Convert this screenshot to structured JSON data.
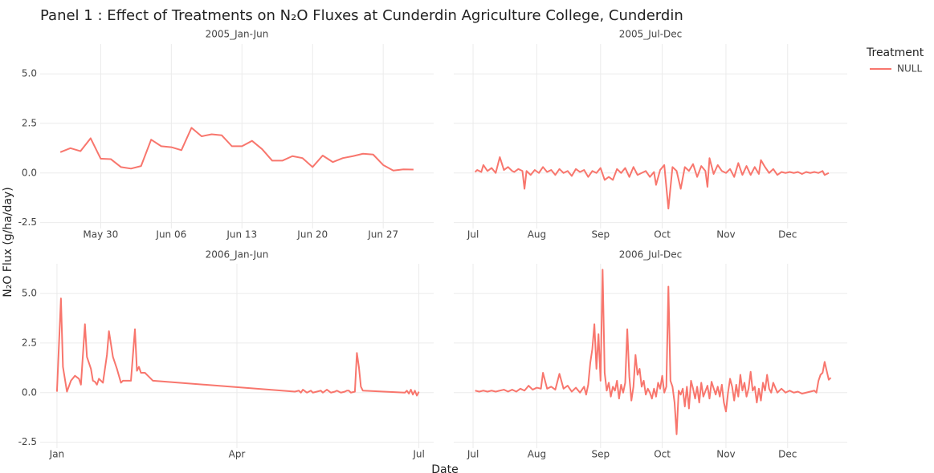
{
  "title": "Panel 1 : Effect of Treatments on N₂O Fluxes at Cunderdin Agriculture College, Cunderdin",
  "x_label": "Date",
  "y_label": "N₂O Flux (g/ha/day)",
  "legend": {
    "title": "Treatment",
    "entries": [
      {
        "name": "NULL",
        "color": "#f8766d"
      }
    ]
  },
  "ylim": [
    -2.8,
    6.5
  ],
  "yticks": [
    -2.5,
    {
      "value": 0,
      "label": "0.0"
    },
    2.5,
    {
      "value": 5,
      "label": "5.0"
    }
  ],
  "chart_data": [
    {
      "type": "line",
      "subtitle": "2005_Jan-Jun",
      "x": [
        146,
        147,
        148,
        149,
        150,
        151,
        152,
        153,
        154,
        155,
        156,
        157,
        158,
        159,
        160,
        161,
        162,
        163,
        164,
        165,
        166,
        167,
        168,
        169,
        170,
        171,
        172,
        173,
        174,
        175,
        176,
        177,
        178,
        179,
        180,
        181
      ],
      "values": [
        1.05,
        1.25,
        1.1,
        1.75,
        0.72,
        0.7,
        0.3,
        0.22,
        0.35,
        1.68,
        1.35,
        1.3,
        1.15,
        2.28,
        1.85,
        1.95,
        1.9,
        1.35,
        1.35,
        1.62,
        1.2,
        0.62,
        0.62,
        0.85,
        0.75,
        0.3,
        0.88,
        0.55,
        0.75,
        0.85,
        0.97,
        0.93,
        0.4,
        0.12,
        0.18,
        0.17
      ],
      "xlim": [
        144,
        183
      ],
      "xticks": [
        {
          "value": 150,
          "label": "May 30"
        },
        {
          "value": 157,
          "label": "Jun 06"
        },
        {
          "value": 164,
          "label": "Jun 13"
        },
        {
          "value": 171,
          "label": "Jun 20"
        },
        {
          "value": 178,
          "label": "Jun 27"
        }
      ]
    },
    {
      "type": "line",
      "subtitle": "2005_Jul-Dec",
      "x": [
        183,
        184,
        186,
        187,
        189,
        191,
        193,
        195,
        197,
        199,
        201,
        202,
        204,
        206,
        207,
        208,
        210,
        212,
        214,
        216,
        218,
        220,
        222,
        224,
        226,
        228,
        230,
        232,
        234,
        236,
        238,
        240,
        242,
        244,
        246,
        248,
        250,
        252,
        254,
        256,
        258,
        260,
        262,
        264,
        266,
        268,
        270,
        271,
        273,
        275,
        277,
        279,
        281,
        283,
        285,
        287,
        289,
        291,
        293,
        295,
        296,
        297,
        299,
        301,
        303,
        305,
        307,
        309,
        311,
        313,
        315,
        317,
        319,
        321,
        322,
        324,
        326,
        328,
        330,
        332,
        334,
        336,
        338,
        340,
        342,
        344,
        346,
        348,
        350,
        352,
        353,
        355
      ],
      "values": [
        0.05,
        0.15,
        0.05,
        0.4,
        0.1,
        0.25,
        0,
        0.8,
        0.15,
        0.3,
        0.1,
        0.05,
        0.2,
        0.1,
        -0.8,
        0.1,
        -0.1,
        0.15,
        0,
        0.3,
        0.05,
        0.15,
        -0.1,
        0.2,
        0,
        0.1,
        -0.15,
        0.2,
        0.05,
        0.15,
        -0.2,
        0.1,
        0,
        0.25,
        -0.35,
        -0.2,
        -0.35,
        0.2,
        0,
        0.25,
        -0.2,
        0.3,
        -0.1,
        0,
        0.1,
        -0.2,
        0.05,
        -0.6,
        0.15,
        0.4,
        -1.8,
        0.3,
        0.1,
        -0.8,
        0.3,
        0.1,
        0.45,
        -0.2,
        0.35,
        0.1,
        -0.7,
        0.75,
        -0.05,
        0.4,
        0.1,
        0,
        0.2,
        -0.2,
        0.5,
        -0.1,
        0.35,
        -0.1,
        0.3,
        -0.05,
        0.65,
        0.3,
        0,
        0.2,
        -0.1,
        0.05,
        0,
        0.05,
        0,
        0.05,
        -0.05,
        0.05,
        0,
        0.05,
        0,
        0.1,
        -0.1,
        0
      ],
      "xlim": [
        172.6,
        364
      ],
      "xticks": [
        {
          "value": 182,
          "label": "Jul"
        },
        {
          "value": 213,
          "label": "Aug"
        },
        {
          "value": 244,
          "label": "Sep"
        },
        {
          "value": 274,
          "label": "Oct"
        },
        {
          "value": 305,
          "label": "Nov"
        },
        {
          "value": 335,
          "label": "Dec"
        }
      ]
    },
    {
      "type": "line",
      "subtitle": "2006_Jan-Jun",
      "x": [
        1,
        3,
        4,
        6,
        8,
        10,
        12,
        13,
        15,
        16,
        18,
        19,
        20,
        21,
        22,
        24,
        26,
        27,
        29,
        31,
        33,
        34,
        36,
        38,
        39,
        40,
        41,
        42,
        43,
        45,
        47,
        49,
        120,
        122,
        123,
        124,
        126,
        128,
        129,
        131,
        133,
        134,
        136,
        138,
        140,
        141,
        143,
        145,
        146,
        147,
        148,
        150,
        151,
        152,
        153,
        154,
        175,
        176,
        177,
        178,
        179,
        180,
        181,
        182
      ],
      "values": [
        0.05,
        4.75,
        1.3,
        0.05,
        0.6,
        0.85,
        0.7,
        0.4,
        3.45,
        1.8,
        1.2,
        0.6,
        0.55,
        0.4,
        0.7,
        0.5,
        1.9,
        3.1,
        1.8,
        1.2,
        0.5,
        0.6,
        0.6,
        0.6,
        1.9,
        3.2,
        1.1,
        1.3,
        1.0,
        1.0,
        0.8,
        0.6,
        0.05,
        0.1,
        0,
        0.15,
        0,
        0.1,
        0,
        0.05,
        0.1,
        0,
        0.15,
        0,
        0.05,
        0.1,
        0,
        0.05,
        0.1,
        0.1,
        0,
        0.05,
        2.0,
        1.3,
        0.3,
        0.1,
        0,
        0.1,
        -0.05,
        0.15,
        -0.1,
        0.1,
        -0.15,
        0.05
      ],
      "xlim": [
        -7.4,
        189.4
      ],
      "xticks": [
        {
          "value": 1,
          "label": "Jan"
        },
        {
          "value": 91,
          "label": "Apr"
        },
        {
          "value": 182,
          "label": "Jul"
        }
      ]
    },
    {
      "type": "line",
      "subtitle": "2006_Jul-Dec",
      "x": [
        183,
        185,
        187,
        189,
        191,
        193,
        195,
        197,
        199,
        201,
        203,
        205,
        207,
        209,
        211,
        213,
        215,
        216,
        218,
        220,
        222,
        224,
        226,
        228,
        230,
        232,
        234,
        236,
        237,
        238,
        239,
        240,
        241,
        242,
        243,
        244,
        245,
        246,
        247,
        248,
        249,
        250,
        251,
        252,
        253,
        254,
        255,
        256,
        257,
        258,
        259,
        260,
        261,
        262,
        263,
        264,
        265,
        266,
        267,
        268,
        269,
        270,
        271,
        272,
        273,
        274,
        275,
        276,
        277,
        278,
        279,
        280,
        281,
        282,
        283,
        284,
        285,
        286,
        287,
        288,
        289,
        290,
        291,
        292,
        293,
        294,
        296,
        297,
        298,
        300,
        301,
        302,
        303,
        304,
        305,
        306,
        307,
        308,
        309,
        310,
        311,
        312,
        313,
        314,
        315,
        316,
        317,
        318,
        319,
        320,
        321,
        322,
        323,
        324,
        325,
        326,
        327,
        328,
        330,
        332,
        334,
        336,
        338,
        340,
        342,
        344,
        346,
        348,
        349,
        350,
        351,
        352,
        353,
        354,
        355,
        356
      ],
      "values": [
        0.1,
        0.05,
        0.1,
        0.05,
        0.1,
        0.05,
        0.1,
        0.15,
        0.05,
        0.15,
        0.05,
        0.2,
        0.1,
        0.35,
        0.15,
        0.25,
        0.2,
        1.0,
        0.2,
        0.3,
        0.15,
        0.95,
        0.2,
        0.35,
        0.05,
        0.25,
        0,
        0.3,
        -0.1,
        0.4,
        1.5,
        2.2,
        3.45,
        1.2,
        2.95,
        0.6,
        6.2,
        1.0,
        0.1,
        0.5,
        -0.2,
        0.3,
        0.1,
        0.6,
        -0.3,
        0.4,
        0,
        0.5,
        3.2,
        0.8,
        -0.4,
        0.3,
        1.9,
        0.9,
        1.2,
        0.3,
        0.6,
        -0.1,
        0.2,
        0,
        -0.3,
        0.2,
        -0.2,
        0.5,
        0.2,
        0.85,
        0,
        0.3,
        5.35,
        0.6,
        0.3,
        -0.5,
        -2.1,
        0.1,
        -0.1,
        0.2,
        -0.7,
        0.3,
        -0.8,
        0.6,
        0.2,
        -0.3,
        0.3,
        -0.5,
        0.5,
        -0.2,
        0.35,
        -0.3,
        0.55,
        -0.1,
        0.3,
        -0.2,
        0.4,
        -0.5,
        -0.95,
        0,
        0.7,
        0.3,
        -0.4,
        0.4,
        -0.2,
        0.9,
        0.1,
        0.5,
        -0.2,
        0.2,
        1.05,
        0.1,
        0.3,
        -0.5,
        0.2,
        -0.4,
        0.5,
        0.1,
        0.9,
        0.2,
        0,
        0.5,
        0,
        0.2,
        0,
        0.1,
        0,
        0.05,
        -0.05,
        0,
        0.05,
        0.1,
        0,
        0.6,
        0.9,
        1.0,
        1.55,
        1.1,
        0.65,
        0.75
      ],
      "xlim": [
        172.6,
        364
      ],
      "xticks": [
        {
          "value": 182,
          "label": "Jul"
        },
        {
          "value": 213,
          "label": "Aug"
        },
        {
          "value": 244,
          "label": "Sep"
        },
        {
          "value": 274,
          "label": "Oct"
        },
        {
          "value": 305,
          "label": "Nov"
        },
        {
          "value": 335,
          "label": "Dec"
        }
      ]
    }
  ]
}
